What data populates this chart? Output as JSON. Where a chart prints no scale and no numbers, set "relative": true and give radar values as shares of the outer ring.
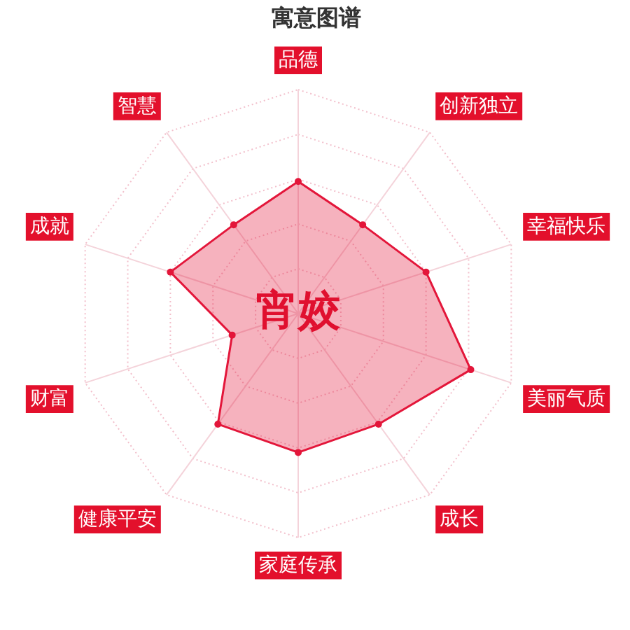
{
  "chart_data": {
    "type": "radar",
    "title": "寓意图谱",
    "categories": [
      "品德",
      "创新独立",
      "幸福快乐",
      "美丽气质",
      "成长",
      "家庭传承",
      "健康平安",
      "财富",
      "成就",
      "智慧"
    ],
    "series": [
      {
        "color": "#e3163a",
        "values": [
          0.59,
          0.49,
          0.6,
          0.81,
          0.61,
          0.62,
          0.61,
          0.31,
          0.6,
          0.49
        ]
      }
    ],
    "relative": true,
    "grid": true,
    "marker": "circle",
    "annotations": [
      "宵姣"
    ]
  }
}
